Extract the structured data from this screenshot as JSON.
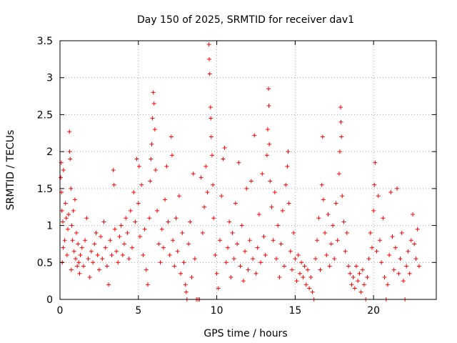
{
  "chart_data": {
    "type": "scatter",
    "title": "Day 150 of 2025, SRMTID for receiver dav1",
    "xlabel": "GPS time / hours",
    "ylabel": "SRMTID / TECUs",
    "xlim": [
      0,
      24
    ],
    "ylim": [
      0,
      3.5
    ],
    "x_ticks": [
      0,
      5,
      10,
      15,
      20
    ],
    "x_tick_labels": [
      "0",
      "5",
      "10",
      "15",
      "20"
    ],
    "y_ticks": [
      0,
      0.5,
      1,
      1.5,
      2,
      2.5,
      3,
      3.5
    ],
    "y_tick_labels": [
      "0",
      "0.5",
      "1",
      "1.5",
      "2",
      "2.5",
      "3",
      "3.5"
    ],
    "grid": true,
    "marker": "+",
    "marker_color": "#ff0000",
    "series": [
      {
        "name": "SRMTID",
        "points": [
          [
            0.05,
            1.65
          ],
          [
            0.08,
            1.85
          ],
          [
            0.1,
            1.45
          ],
          [
            0.12,
            1.2
          ],
          [
            0.15,
            0.5
          ],
          [
            0.18,
            1.05
          ],
          [
            0.2,
            0.7
          ],
          [
            0.22,
            1.75
          ],
          [
            0.3,
            0.8
          ],
          [
            0.35,
            1.3
          ],
          [
            0.4,
            1.1
          ],
          [
            0.45,
            0.6
          ],
          [
            0.5,
            0.95
          ],
          [
            0.55,
            1.15
          ],
          [
            0.6,
            2.27
          ],
          [
            0.62,
            2.0
          ],
          [
            0.65,
            1.9
          ],
          [
            0.7,
            1.5
          ],
          [
            0.72,
            0.4
          ],
          [
            0.75,
            1.0
          ],
          [
            0.8,
            0.8
          ],
          [
            0.85,
            1.2
          ],
          [
            0.9,
            0.65
          ],
          [
            0.95,
            1.35
          ],
          [
            1.0,
            0.55
          ],
          [
            1.05,
            0.9
          ],
          [
            1.1,
            0.45
          ],
          [
            1.15,
            0.75
          ],
          [
            1.2,
            0.5
          ],
          [
            1.25,
            0.35
          ],
          [
            1.3,
            0.6
          ],
          [
            1.4,
            0.7
          ],
          [
            1.5,
            0.45
          ],
          [
            1.6,
            0.8
          ],
          [
            1.7,
            1.1
          ],
          [
            1.8,
            0.55
          ],
          [
            1.9,
            0.3
          ],
          [
            2.0,
            0.65
          ],
          [
            2.1,
            0.5
          ],
          [
            2.2,
            0.75
          ],
          [
            2.3,
            0.9
          ],
          [
            2.4,
            0.6
          ],
          [
            2.5,
            0.4
          ],
          [
            2.6,
            0.85
          ],
          [
            2.7,
            0.55
          ],
          [
            2.8,
            1.05
          ],
          [
            2.9,
            0.7
          ],
          [
            3.0,
            0.45
          ],
          [
            3.1,
            0.2
          ],
          [
            3.2,
            0.8
          ],
          [
            3.3,
            0.6
          ],
          [
            3.4,
            1.75
          ],
          [
            3.45,
            1.55
          ],
          [
            3.5,
            0.95
          ],
          [
            3.6,
            0.65
          ],
          [
            3.7,
            0.5
          ],
          [
            3.8,
            0.85
          ],
          [
            3.9,
            1.0
          ],
          [
            4.0,
            0.6
          ],
          [
            4.1,
            0.75
          ],
          [
            4.2,
            1.1
          ],
          [
            4.3,
            0.9
          ],
          [
            4.4,
            0.55
          ],
          [
            4.5,
            1.2
          ],
          [
            4.6,
            0.7
          ],
          [
            4.7,
            1.45
          ],
          [
            4.8,
            1.05
          ],
          [
            4.9,
            1.9
          ],
          [
            5.0,
            1.3
          ],
          [
            5.05,
            1.8
          ],
          [
            5.1,
            0.85
          ],
          [
            5.2,
            1.55
          ],
          [
            5.3,
            0.6
          ],
          [
            5.4,
            0.95
          ],
          [
            5.5,
            0.4
          ],
          [
            5.6,
            0.2
          ],
          [
            5.7,
            1.1
          ],
          [
            5.75,
            1.6
          ],
          [
            5.8,
            1.9
          ],
          [
            5.85,
            2.1
          ],
          [
            5.9,
            2.45
          ],
          [
            5.95,
            2.8
          ],
          [
            6.0,
            2.65
          ],
          [
            6.05,
            2.3
          ],
          [
            6.1,
            1.75
          ],
          [
            6.2,
            1.2
          ],
          [
            6.3,
            0.75
          ],
          [
            6.4,
            0.5
          ],
          [
            6.5,
            0.95
          ],
          [
            6.6,
            0.7
          ],
          [
            6.7,
            1.35
          ],
          [
            6.8,
            1.8
          ],
          [
            6.9,
            1.05
          ],
          [
            7.0,
            0.6
          ],
          [
            7.1,
            2.2
          ],
          [
            7.15,
            1.95
          ],
          [
            7.2,
            0.8
          ],
          [
            7.3,
            0.45
          ],
          [
            7.4,
            1.1
          ],
          [
            7.5,
            0.65
          ],
          [
            7.6,
            1.4
          ],
          [
            7.7,
            0.35
          ],
          [
            7.8,
            0.9
          ],
          [
            7.9,
            0.5
          ],
          [
            8.0,
            0.2
          ],
          [
            8.05,
            0.1
          ],
          [
            8.1,
            0.0
          ],
          [
            8.2,
            0.75
          ],
          [
            8.3,
            1.05
          ],
          [
            8.4,
            0.3
          ],
          [
            8.5,
            1.7
          ],
          [
            8.6,
            0.55
          ],
          [
            8.7,
            0.0
          ],
          [
            8.8,
            0.0
          ],
          [
            8.9,
            0.0
          ],
          [
            9.0,
            1.65
          ],
          [
            9.1,
            0.9
          ],
          [
            9.2,
            1.25
          ],
          [
            9.3,
            1.8
          ],
          [
            9.4,
            1.45
          ],
          [
            9.5,
            3.45
          ],
          [
            9.52,
            3.25
          ],
          [
            9.55,
            3.05
          ],
          [
            9.6,
            2.6
          ],
          [
            9.62,
            2.45
          ],
          [
            9.65,
            2.2
          ],
          [
            9.7,
            1.95
          ],
          [
            9.75,
            1.55
          ],
          [
            9.8,
            1.1
          ],
          [
            9.9,
            0.6
          ],
          [
            10.0,
            0.35
          ],
          [
            10.1,
            0.15
          ],
          [
            10.2,
            0.8
          ],
          [
            10.3,
            1.4
          ],
          [
            10.4,
            1.9
          ],
          [
            10.5,
            2.05
          ],
          [
            10.6,
            0.5
          ],
          [
            10.7,
            0.7
          ],
          [
            10.8,
            1.05
          ],
          [
            10.9,
            0.3
          ],
          [
            11.0,
            0.9
          ],
          [
            11.1,
            0.55
          ],
          [
            11.2,
            1.3
          ],
          [
            11.3,
            0.75
          ],
          [
            11.4,
            1.85
          ],
          [
            11.5,
            0.45
          ],
          [
            11.6,
            1.0
          ],
          [
            11.7,
            0.25
          ],
          [
            11.8,
            0.65
          ],
          [
            11.9,
            1.5
          ],
          [
            12.0,
            0.4
          ],
          [
            12.1,
            0.8
          ],
          [
            12.2,
            1.6
          ],
          [
            12.3,
            0.55
          ],
          [
            12.4,
            2.22
          ],
          [
            12.5,
            0.35
          ],
          [
            12.6,
            0.7
          ],
          [
            12.7,
            1.15
          ],
          [
            12.8,
            0.5
          ],
          [
            12.9,
            1.7
          ],
          [
            13.0,
            0.85
          ],
          [
            13.1,
            0.6
          ],
          [
            13.2,
            1.95
          ],
          [
            13.25,
            2.3
          ],
          [
            13.3,
            2.85
          ],
          [
            13.32,
            2.62
          ],
          [
            13.35,
            2.1
          ],
          [
            13.4,
            1.6
          ],
          [
            13.5,
            1.25
          ],
          [
            13.6,
            0.8
          ],
          [
            13.7,
            1.45
          ],
          [
            13.8,
            0.55
          ],
          [
            13.9,
            1.0
          ],
          [
            14.0,
            0.3
          ],
          [
            14.1,
            0.75
          ],
          [
            14.2,
            1.2
          ],
          [
            14.3,
            0.45
          ],
          [
            14.4,
            1.55
          ],
          [
            14.5,
            1.8
          ],
          [
            14.55,
            2.0
          ],
          [
            14.6,
            1.3
          ],
          [
            14.7,
            0.65
          ],
          [
            14.8,
            0.4
          ],
          [
            14.9,
            0.9
          ],
          [
            15.0,
            0.55
          ],
          [
            15.1,
            0.25
          ],
          [
            15.2,
            0.6
          ],
          [
            15.3,
            0.35
          ],
          [
            15.4,
            0.5
          ],
          [
            15.5,
            0.3
          ],
          [
            15.6,
            0.45
          ],
          [
            15.7,
            0.2
          ],
          [
            15.8,
            0.4
          ],
          [
            15.9,
            0.15
          ],
          [
            16.0,
            0.3
          ],
          [
            16.1,
            0.1
          ],
          [
            16.2,
            0.0
          ],
          [
            16.3,
            0.55
          ],
          [
            16.4,
            0.8
          ],
          [
            16.5,
            1.1
          ],
          [
            16.6,
            0.4
          ],
          [
            16.7,
            1.55
          ],
          [
            16.75,
            2.2
          ],
          [
            16.8,
            1.35
          ],
          [
            16.9,
            0.9
          ],
          [
            17.0,
            0.6
          ],
          [
            17.1,
            1.15
          ],
          [
            17.2,
            0.45
          ],
          [
            17.3,
            0.75
          ],
          [
            17.4,
            1.0
          ],
          [
            17.5,
            0.55
          ],
          [
            17.6,
            1.3
          ],
          [
            17.7,
            0.8
          ],
          [
            17.8,
            1.7
          ],
          [
            17.85,
            2.0
          ],
          [
            17.9,
            2.6
          ],
          [
            17.92,
            2.4
          ],
          [
            17.95,
            2.2
          ],
          [
            18.0,
            1.4
          ],
          [
            18.1,
            1.05
          ],
          [
            18.2,
            0.65
          ],
          [
            18.3,
            0.9
          ],
          [
            18.4,
            0.45
          ],
          [
            18.5,
            0.35
          ],
          [
            18.6,
            0.2
          ],
          [
            18.7,
            0.3
          ],
          [
            18.8,
            0.15
          ],
          [
            18.9,
            0.45
          ],
          [
            19.0,
            0.25
          ],
          [
            19.1,
            0.35
          ],
          [
            19.2,
            0.1
          ],
          [
            19.3,
            0.4
          ],
          [
            19.4,
            0.2
          ],
          [
            19.5,
            0.0
          ],
          [
            19.6,
            0.3
          ],
          [
            19.7,
            0.55
          ],
          [
            19.8,
            0.9
          ],
          [
            19.9,
            0.7
          ],
          [
            20.0,
            1.2
          ],
          [
            20.05,
            1.55
          ],
          [
            20.1,
            1.85
          ],
          [
            20.2,
            0.65
          ],
          [
            20.3,
            1.4
          ],
          [
            20.4,
            0.8
          ],
          [
            20.5,
            0.5
          ],
          [
            20.6,
            1.1
          ],
          [
            20.7,
            0.3
          ],
          [
            20.8,
            0.0
          ],
          [
            20.9,
            0.2
          ],
          [
            21.0,
            0.6
          ],
          [
            21.1,
            1.45
          ],
          [
            21.2,
            0.85
          ],
          [
            21.3,
            0.4
          ],
          [
            21.4,
            0.7
          ],
          [
            21.5,
            1.5
          ],
          [
            21.6,
            0.35
          ],
          [
            21.7,
            0.55
          ],
          [
            21.8,
            0.9
          ],
          [
            21.9,
            0.25
          ],
          [
            22.0,
            0.0
          ],
          [
            22.1,
            0.45
          ],
          [
            22.2,
            0.65
          ],
          [
            22.3,
            0.35
          ],
          [
            22.4,
            0.8
          ],
          [
            22.5,
            1.15
          ],
          [
            22.6,
            0.75
          ],
          [
            22.7,
            0.55
          ],
          [
            22.8,
            0.95
          ],
          [
            22.9,
            0.45
          ]
        ]
      }
    ]
  }
}
